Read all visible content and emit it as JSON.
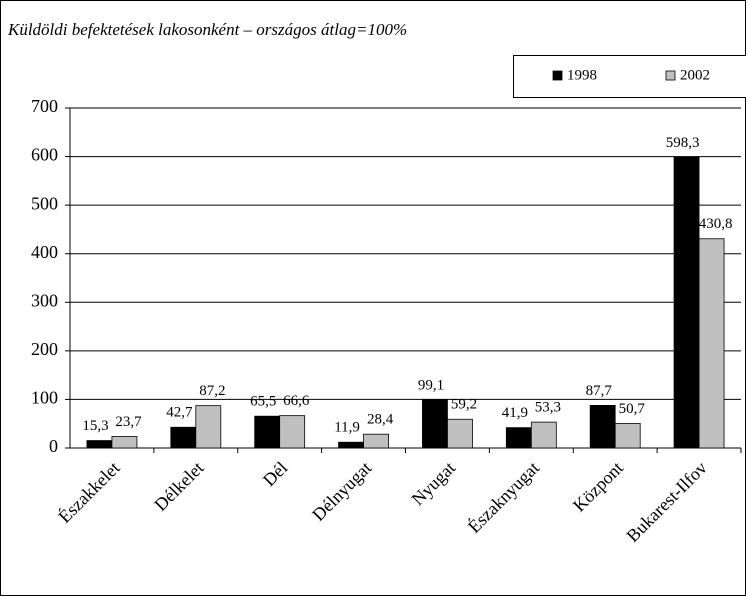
{
  "chart_data": {
    "type": "bar",
    "title": "Küldöldi befektetések lakosonként – országos átlag=100%",
    "categories": [
      "Északkelet",
      "Délkelet",
      "Dél",
      "Délnyugat",
      "Nyugat",
      "Északnyugat",
      "Központ",
      "Bukarest-Ilfov"
    ],
    "series": [
      {
        "name": "1998",
        "color": "#000000",
        "values": [
          15.3,
          42.7,
          65.5,
          11.9,
          99.1,
          41.9,
          87.7,
          598.3
        ],
        "value_labels": [
          "15,3",
          "42,7",
          "65,5",
          "11,9",
          "99,1",
          "41,9",
          "87,7",
          "598,3"
        ]
      },
      {
        "name": "2002",
        "color": "#c0c0c0",
        "values": [
          23.7,
          87.2,
          66.6,
          28.4,
          59.2,
          53.3,
          50.7,
          430.8
        ],
        "value_labels": [
          "23,7",
          "87,2",
          "66,6",
          "28,4",
          "59,2",
          "53,3",
          "50,7",
          "430,8"
        ]
      }
    ],
    "ylim": [
      0,
      700
    ],
    "yticks": [
      0,
      100,
      200,
      300,
      400,
      500,
      600,
      700
    ],
    "grid": true,
    "legend": "top-right"
  }
}
